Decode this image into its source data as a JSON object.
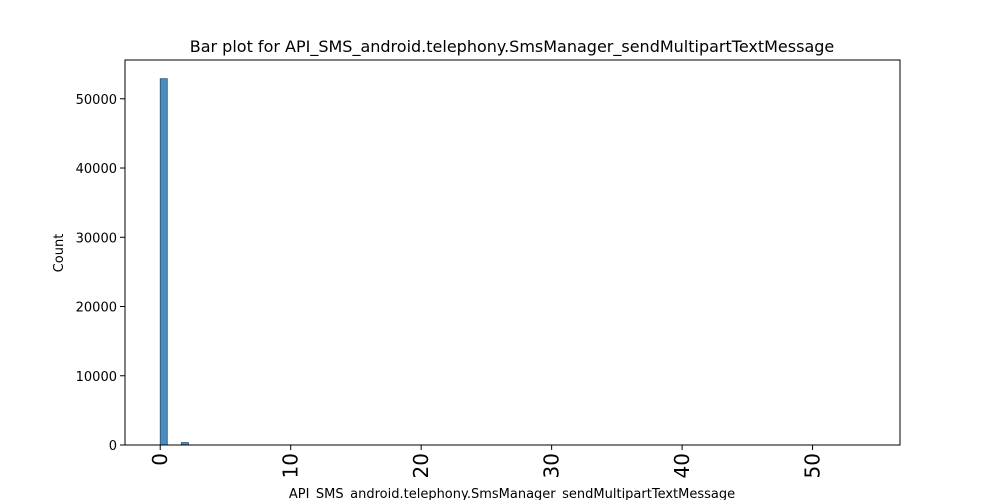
{
  "chart_data": {
    "type": "bar",
    "title": "Bar plot for API_SMS_android.telephony.SmsManager_sendMultipartTextMessage",
    "xlabel": "API_SMS_android.telephony.SmsManager_sendMultipartTextMessage",
    "ylabel": "Count",
    "xlim": [
      -2.7,
      56.7
    ],
    "ylim": [
      0,
      55600
    ],
    "x_ticks": [
      0,
      10,
      20,
      30,
      40,
      50
    ],
    "x_tick_labels": [
      "0",
      "10",
      "20",
      "30",
      "40",
      "50"
    ],
    "y_ticks": [
      0,
      10000,
      20000,
      30000,
      40000,
      50000
    ],
    "y_tick_labels": [
      "0",
      "10000",
      "20000",
      "30000",
      "40000",
      "50000"
    ],
    "bin_width": 0.54,
    "bars": [
      {
        "x": 0,
        "value": 52900
      },
      {
        "x": 1.62,
        "value": 350
      }
    ],
    "grid": false,
    "legend": "none",
    "bar_color": "#4c8dbf",
    "edge_color": "#2b4f6e"
  }
}
